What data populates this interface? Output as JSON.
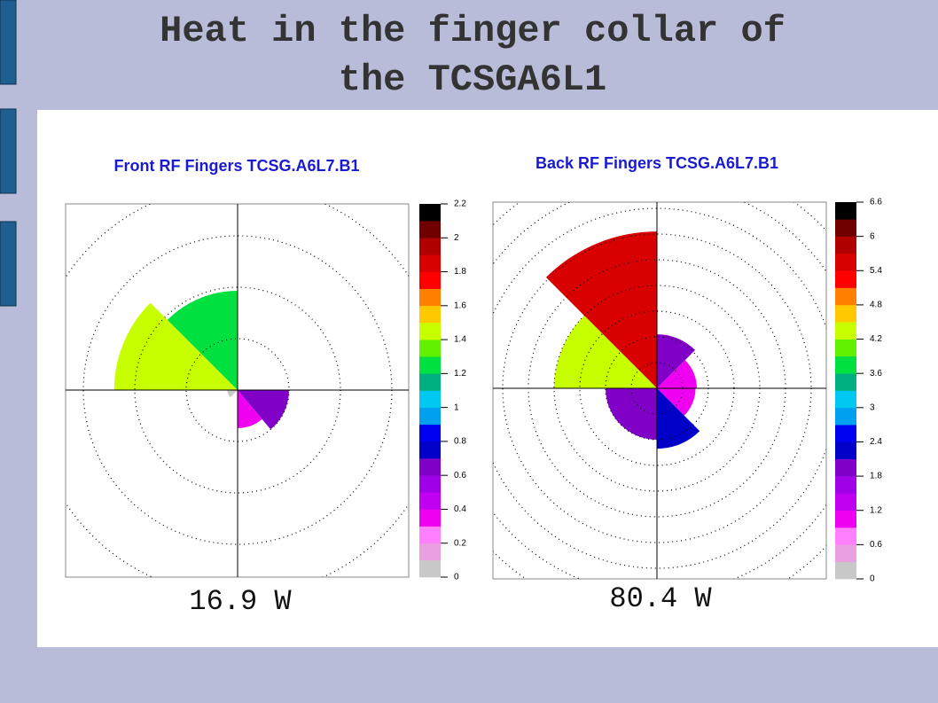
{
  "title": [
    "Heat in the finger collar of",
    "the TCSGA6L1"
  ],
  "chart_data": [
    {
      "type": "polar-sector",
      "title": "Front RF Fingers TCSG.A6L7.B1",
      "caption": "16.9 W",
      "rlim": [
        0,
        5
      ],
      "rticks": [
        1,
        2,
        3,
        4,
        5
      ],
      "zlim": [
        0,
        2.2
      ],
      "zticks": [
        0,
        0.2,
        0.4,
        0.6,
        0.8,
        1,
        1.2,
        1.4,
        1.6,
        1.8,
        2,
        2.2
      ],
      "palette": [
        "#c8c8c8",
        "#e8a0e0",
        "#ff80ff",
        "#f000f0",
        "#c000f0",
        "#a000e8",
        "#8000c8",
        "#0000c8",
        "#0000f0",
        "#00a0f0",
        "#00c8f0",
        "#00b080",
        "#00e040",
        "#60f000",
        "#c8ff00",
        "#ffc800",
        "#ff8000",
        "#ff0000",
        "#d80000",
        "#b00000",
        "#700000",
        "#000000"
      ],
      "sectors": [
        {
          "theta": [
            135,
            180
          ],
          "r": 2.4,
          "value": 1.5
        },
        {
          "theta": [
            90,
            135
          ],
          "r": 1.93,
          "value": 1.2
        },
        {
          "theta": [
            -50,
            0
          ],
          "r": 1.0,
          "value": 0.65
        },
        {
          "theta": [
            -90,
            -50
          ],
          "r": 0.74,
          "value": 0.35
        },
        {
          "theta": [
            180,
            225
          ],
          "r": 0.2,
          "value": 0.05
        }
      ]
    },
    {
      "type": "polar-sector",
      "title": "Back RF Fingers TCSG.A6L7.B1",
      "caption": "80.4 W",
      "rlim": [
        0,
        10
      ],
      "rticks": [
        1,
        2,
        3,
        4,
        5,
        6,
        7,
        8,
        9,
        10
      ],
      "zlim": [
        0,
        6.6
      ],
      "zticks": [
        0,
        0.6,
        1.2,
        1.8,
        2.4,
        3,
        3.6,
        4.2,
        4.8,
        5.4,
        6,
        6.6
      ],
      "palette": [
        "#c8c8c8",
        "#e8a0e0",
        "#ff80ff",
        "#f000f0",
        "#c000f0",
        "#a000e8",
        "#8000c8",
        "#0000c8",
        "#0000f0",
        "#00a0f0",
        "#00c8f0",
        "#00b080",
        "#00e040",
        "#60f000",
        "#c8ff00",
        "#ffc800",
        "#ff8000",
        "#ff0000",
        "#d80000",
        "#b00000",
        "#700000",
        "#000000"
      ],
      "sectors": [
        {
          "theta": [
            90,
            135
          ],
          "r": 6.1,
          "value": 5.6
        },
        {
          "theta": [
            135,
            180
          ],
          "r": 4.0,
          "value": 4.2
        },
        {
          "theta": [
            45,
            90
          ],
          "r": 2.1,
          "value": 1.9
        },
        {
          "theta": [
            0,
            45
          ],
          "r": 1.55,
          "value": 1.1
        },
        {
          "theta": [
            -45,
            0
          ],
          "r": 1.5,
          "value": 1.1
        },
        {
          "theta": [
            -90,
            -45
          ],
          "r": 2.35,
          "value": 2.3
        },
        {
          "theta": [
            180,
            270
          ],
          "r": 2.0,
          "value": 1.9
        }
      ]
    }
  ]
}
